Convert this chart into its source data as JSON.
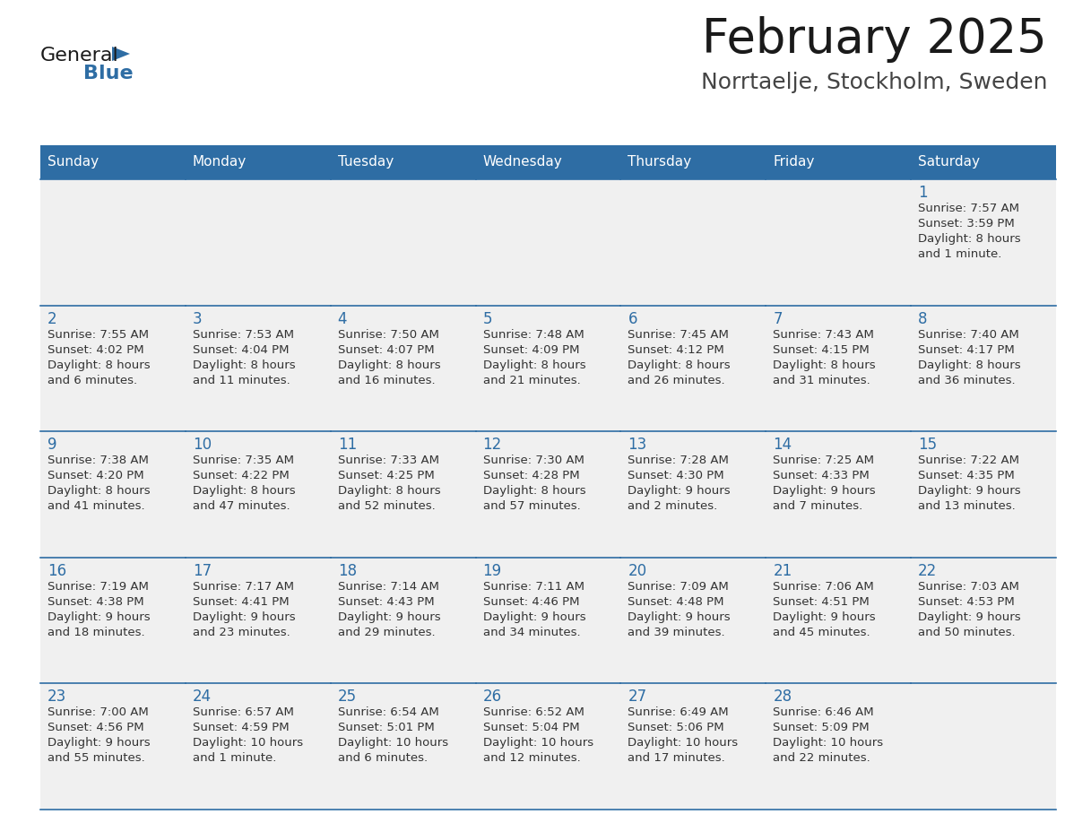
{
  "title": "February 2025",
  "subtitle": "Norrtaelje, Stockholm, Sweden",
  "days_of_week": [
    "Sunday",
    "Monday",
    "Tuesday",
    "Wednesday",
    "Thursday",
    "Friday",
    "Saturday"
  ],
  "header_bg": "#2E6DA4",
  "header_text": "#FFFFFF",
  "cell_bg": "#F0F0F0",
  "cell_bg_white": "#FFFFFF",
  "border_color": "#2E6DA4",
  "day_number_color": "#2E6DA4",
  "cell_text_color": "#333333",
  "title_color": "#1a1a1a",
  "subtitle_color": "#444444",
  "logo_general_color": "#1a1a1a",
  "logo_blue_color": "#2E6DA4",
  "fig_width": 11.88,
  "fig_height": 9.18,
  "dpi": 100,
  "weeks": [
    {
      "days": [
        {
          "date": null,
          "sunrise": null,
          "sunset": null,
          "daylight": null
        },
        {
          "date": null,
          "sunrise": null,
          "sunset": null,
          "daylight": null
        },
        {
          "date": null,
          "sunrise": null,
          "sunset": null,
          "daylight": null
        },
        {
          "date": null,
          "sunrise": null,
          "sunset": null,
          "daylight": null
        },
        {
          "date": null,
          "sunrise": null,
          "sunset": null,
          "daylight": null
        },
        {
          "date": null,
          "sunrise": null,
          "sunset": null,
          "daylight": null
        },
        {
          "date": 1,
          "sunrise": "7:57 AM",
          "sunset": "3:59 PM",
          "daylight": "8 hours and 1 minute."
        }
      ]
    },
    {
      "days": [
        {
          "date": 2,
          "sunrise": "7:55 AM",
          "sunset": "4:02 PM",
          "daylight": "8 hours and 6 minutes."
        },
        {
          "date": 3,
          "sunrise": "7:53 AM",
          "sunset": "4:04 PM",
          "daylight": "8 hours and 11 minutes."
        },
        {
          "date": 4,
          "sunrise": "7:50 AM",
          "sunset": "4:07 PM",
          "daylight": "8 hours and 16 minutes."
        },
        {
          "date": 5,
          "sunrise": "7:48 AM",
          "sunset": "4:09 PM",
          "daylight": "8 hours and 21 minutes."
        },
        {
          "date": 6,
          "sunrise": "7:45 AM",
          "sunset": "4:12 PM",
          "daylight": "8 hours and 26 minutes."
        },
        {
          "date": 7,
          "sunrise": "7:43 AM",
          "sunset": "4:15 PM",
          "daylight": "8 hours and 31 minutes."
        },
        {
          "date": 8,
          "sunrise": "7:40 AM",
          "sunset": "4:17 PM",
          "daylight": "8 hours and 36 minutes."
        }
      ]
    },
    {
      "days": [
        {
          "date": 9,
          "sunrise": "7:38 AM",
          "sunset": "4:20 PM",
          "daylight": "8 hours and 41 minutes."
        },
        {
          "date": 10,
          "sunrise": "7:35 AM",
          "sunset": "4:22 PM",
          "daylight": "8 hours and 47 minutes."
        },
        {
          "date": 11,
          "sunrise": "7:33 AM",
          "sunset": "4:25 PM",
          "daylight": "8 hours and 52 minutes."
        },
        {
          "date": 12,
          "sunrise": "7:30 AM",
          "sunset": "4:28 PM",
          "daylight": "8 hours and 57 minutes."
        },
        {
          "date": 13,
          "sunrise": "7:28 AM",
          "sunset": "4:30 PM",
          "daylight": "9 hours and 2 minutes."
        },
        {
          "date": 14,
          "sunrise": "7:25 AM",
          "sunset": "4:33 PM",
          "daylight": "9 hours and 7 minutes."
        },
        {
          "date": 15,
          "sunrise": "7:22 AM",
          "sunset": "4:35 PM",
          "daylight": "9 hours and 13 minutes."
        }
      ]
    },
    {
      "days": [
        {
          "date": 16,
          "sunrise": "7:19 AM",
          "sunset": "4:38 PM",
          "daylight": "9 hours and 18 minutes."
        },
        {
          "date": 17,
          "sunrise": "7:17 AM",
          "sunset": "4:41 PM",
          "daylight": "9 hours and 23 minutes."
        },
        {
          "date": 18,
          "sunrise": "7:14 AM",
          "sunset": "4:43 PM",
          "daylight": "9 hours and 29 minutes."
        },
        {
          "date": 19,
          "sunrise": "7:11 AM",
          "sunset": "4:46 PM",
          "daylight": "9 hours and 34 minutes."
        },
        {
          "date": 20,
          "sunrise": "7:09 AM",
          "sunset": "4:48 PM",
          "daylight": "9 hours and 39 minutes."
        },
        {
          "date": 21,
          "sunrise": "7:06 AM",
          "sunset": "4:51 PM",
          "daylight": "9 hours and 45 minutes."
        },
        {
          "date": 22,
          "sunrise": "7:03 AM",
          "sunset": "4:53 PM",
          "daylight": "9 hours and 50 minutes."
        }
      ]
    },
    {
      "days": [
        {
          "date": 23,
          "sunrise": "7:00 AM",
          "sunset": "4:56 PM",
          "daylight": "9 hours and 55 minutes."
        },
        {
          "date": 24,
          "sunrise": "6:57 AM",
          "sunset": "4:59 PM",
          "daylight": "10 hours and 1 minute."
        },
        {
          "date": 25,
          "sunrise": "6:54 AM",
          "sunset": "5:01 PM",
          "daylight": "10 hours and 6 minutes."
        },
        {
          "date": 26,
          "sunrise": "6:52 AM",
          "sunset": "5:04 PM",
          "daylight": "10 hours and 12 minutes."
        },
        {
          "date": 27,
          "sunrise": "6:49 AM",
          "sunset": "5:06 PM",
          "daylight": "10 hours and 17 minutes."
        },
        {
          "date": 28,
          "sunrise": "6:46 AM",
          "sunset": "5:09 PM",
          "daylight": "10 hours and 22 minutes."
        },
        {
          "date": null,
          "sunrise": null,
          "sunset": null,
          "daylight": null
        }
      ]
    }
  ]
}
